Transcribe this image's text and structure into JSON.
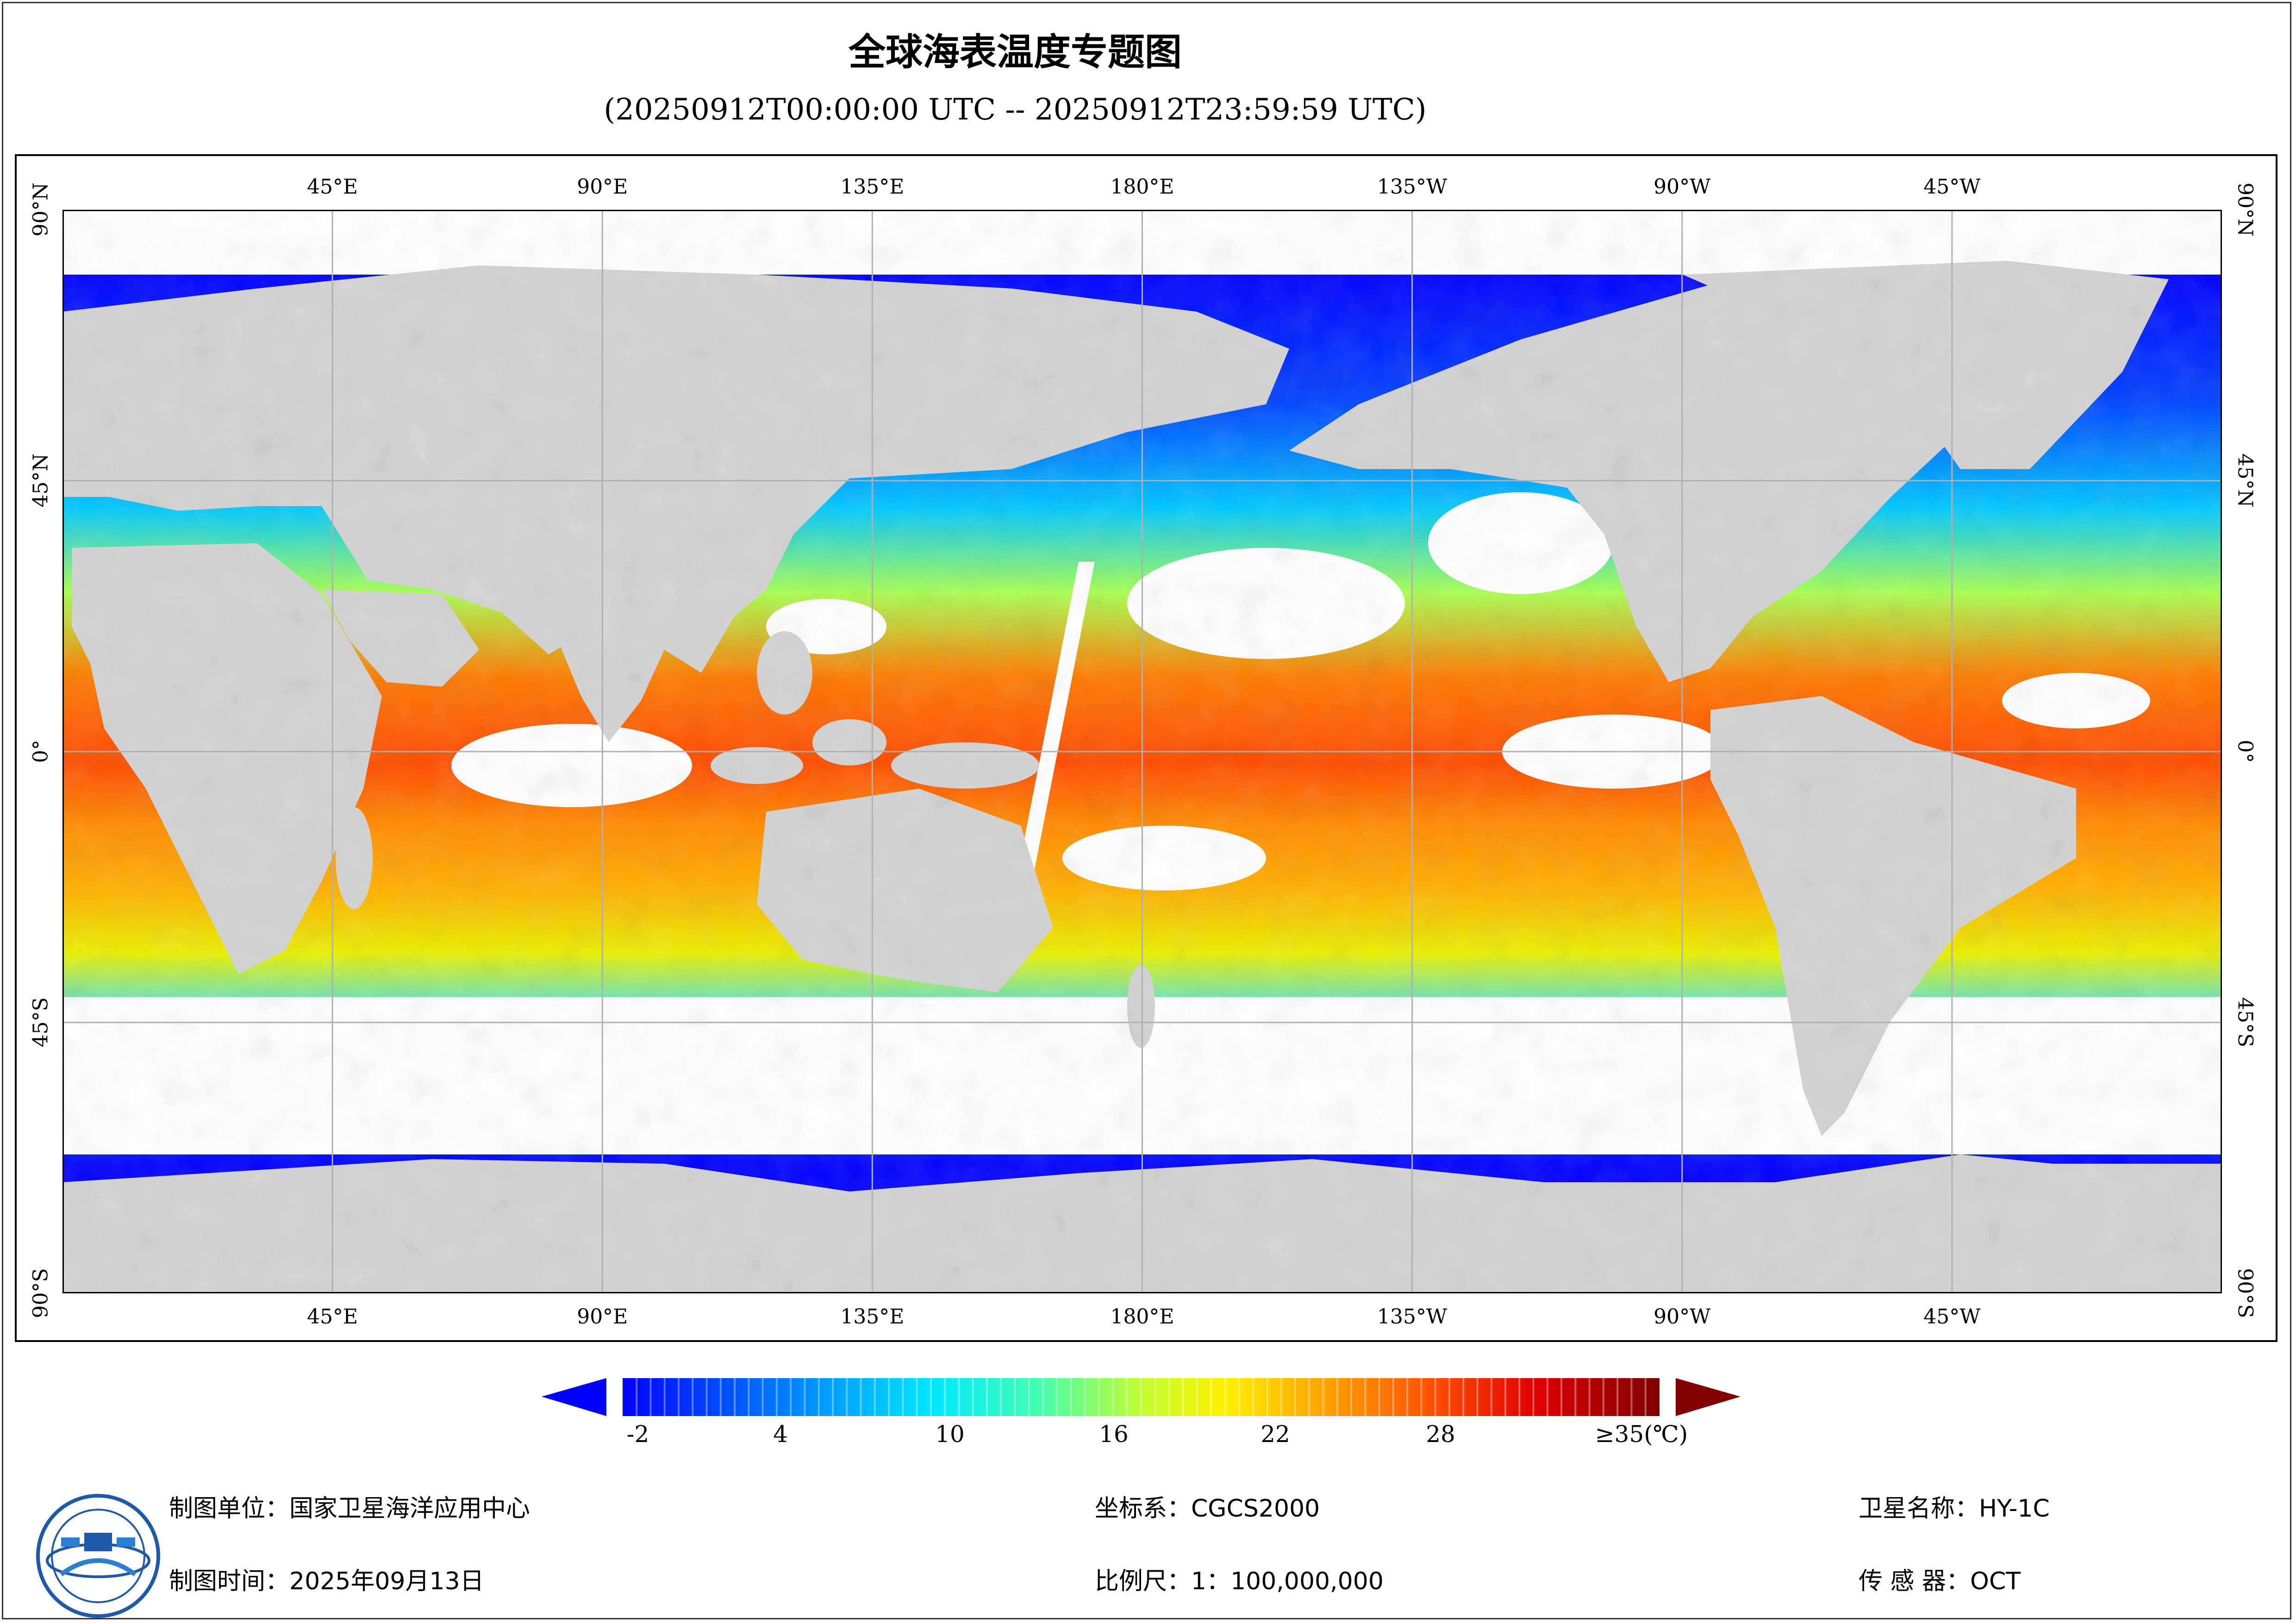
{
  "title": "全球海表温度专题图",
  "subtitle": "(20250912T00:00:00 UTC -- 20250912T23:59:59 UTC)",
  "map": {
    "projection": "equirectangular",
    "lon_range": [
      0,
      360
    ],
    "lat_range": [
      -90,
      90
    ],
    "top_ticks": [
      "45°E",
      "90°E",
      "135°E",
      "180°E",
      "135°W",
      "90°W",
      "45°W"
    ],
    "bottom_ticks": [
      "45°E",
      "90°E",
      "135°E",
      "180°E",
      "135°W",
      "90°W",
      "45°W"
    ],
    "lat_ticks": [
      "90°N",
      "45°N",
      "0°",
      "45°S",
      "90°S"
    ],
    "colors": {
      "land": "#d3d3d3",
      "nodata": "#ffffff",
      "grid": "#b0b0b0"
    }
  },
  "colorbar": {
    "labels": [
      "-2",
      "4",
      "10",
      "16",
      "22",
      "28",
      "≥35(℃)"
    ],
    "min_value": -2,
    "max_value": 35,
    "under_color": "#0000ff",
    "over_color": "#800000"
  },
  "footer": {
    "org": "制图单位：国家卫星海洋应用中心",
    "date": "制图时间：2025年09月13日",
    "crs": "坐标系：CGCS2000",
    "scale": "比例尺：1：100,000,000",
    "satellite": "卫星名称：HY-1C",
    "sensor": "传 感 器：OCT"
  }
}
